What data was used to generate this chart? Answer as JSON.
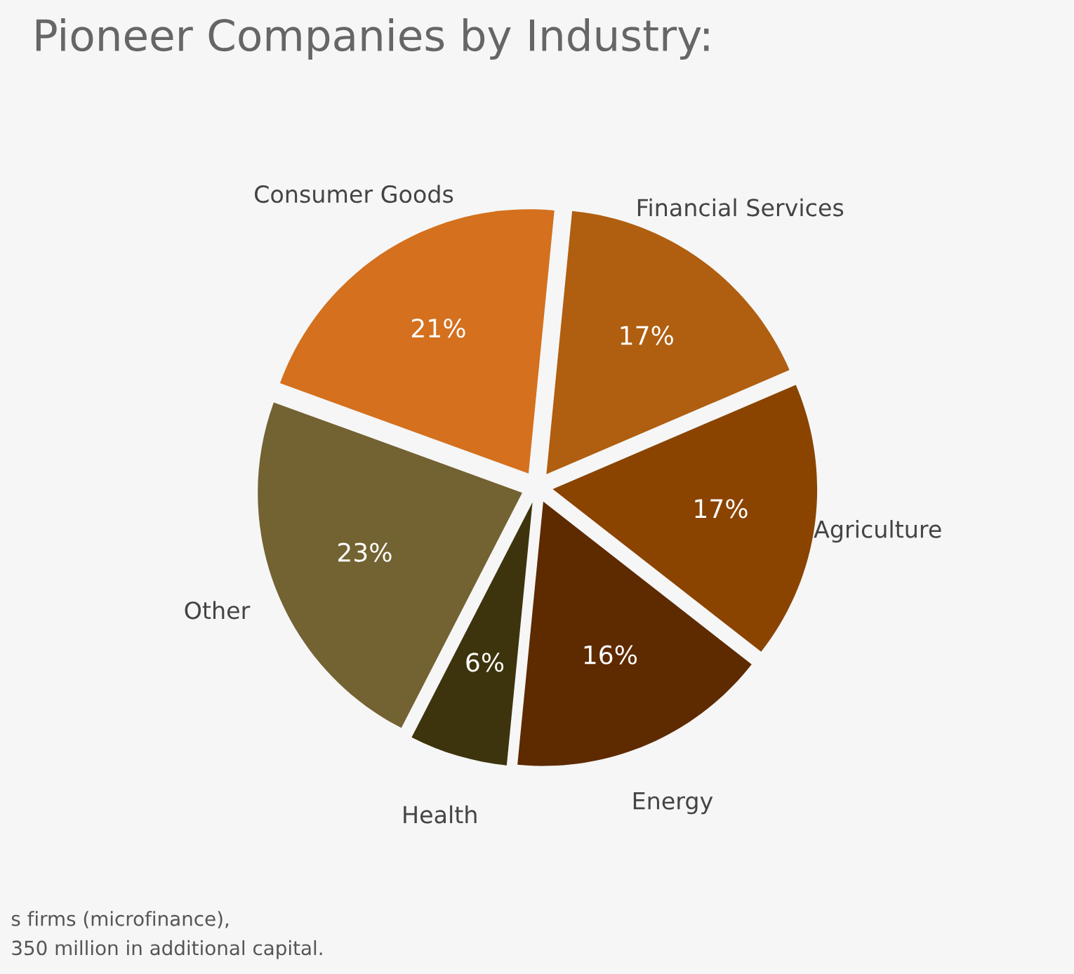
{
  "chart_data": {
    "type": "pie",
    "title": "Pioneer Companies by Industry:",
    "categories": [
      "Consumer Goods",
      "Financial Services",
      "Agriculture",
      "Energy",
      "Health",
      "Other"
    ],
    "values": [
      21,
      17,
      17,
      16,
      6,
      23
    ],
    "value_labels": [
      "21%",
      "17%",
      "17%",
      "16%",
      "6%",
      "23%"
    ],
    "colors": [
      "#d4701e",
      "#b05e10",
      "#8a4400",
      "#5e2a00",
      "#3d340e",
      "#736232"
    ],
    "annotations": [
      "s firms (microfinance),",
      "350 million in additional capital."
    ],
    "legend": false
  }
}
